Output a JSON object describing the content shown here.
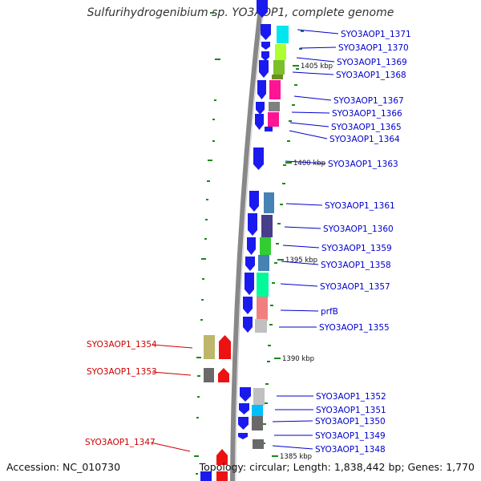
{
  "title": "Sulfurihydrogenibium sp. YO3AOP1, complete genome",
  "footer": {
    "accession": "Accession: NC_010730",
    "topology": "Topology: circular; Length: 1,838,442 bp; Genes: 1,770"
  },
  "colors": {
    "forward_arrow": "#1a1aee",
    "reverse_arrow": "#ee1111",
    "forward_label": "#0000cc",
    "reverse_label": "#cc0000",
    "backbone": "#888888",
    "tick": "#1a8a1a"
  },
  "scale_ticks": [
    {
      "label": "1405 kbp"
    },
    {
      "label": "1400 kbp"
    },
    {
      "label": "1395 kbp"
    },
    {
      "label": "1390 kbp"
    },
    {
      "label": "1385 kbp"
    }
  ],
  "genes_forward": [
    {
      "label": "SYO3AOP1_1371",
      "color": "#00e5ee"
    },
    {
      "label": "SYO3AOP1_1370",
      "color": "#adff2f"
    },
    {
      "label": "SYO3AOP1_1369",
      "color": "#7cbf2a"
    },
    {
      "label": "SYO3AOP1_1368",
      "color": "#6b8e23"
    },
    {
      "label": "SYO3AOP1_1367",
      "color": "#ff1493"
    },
    {
      "label": "SYO3AOP1_1366",
      "color": "#808080"
    },
    {
      "label": "SYO3AOP1_1365",
      "color": "#ff1493"
    },
    {
      "label": "SYO3AOP1_1364",
      "color": "#1a1aee"
    },
    {
      "label": "SYO3AOP1_1363",
      "color": "#1a1aee"
    },
    {
      "label": "SYO3AOP1_1361",
      "color": "#4682b4"
    },
    {
      "label": "SYO3AOP1_1360",
      "color": "#483d8b"
    },
    {
      "label": "SYO3AOP1_1359",
      "color": "#32cd32"
    },
    {
      "label": "SYO3AOP1_1358",
      "color": "#4682b4"
    },
    {
      "label": "SYO3AOP1_1357",
      "color": "#00fa9a"
    },
    {
      "label": "prfB",
      "color": "#f08080"
    },
    {
      "label": "SYO3AOP1_1355",
      "color": "#c0c0c0"
    },
    {
      "label": "SYO3AOP1_1352",
      "color": "#c0c0c0"
    },
    {
      "label": "SYO3AOP1_1351",
      "color": "#00bfff"
    },
    {
      "label": "SYO3AOP1_1350",
      "color": "#696969"
    },
    {
      "label": "SYO3AOP1_1349",
      "color": "#1a1aee"
    },
    {
      "label": "SYO3AOP1_1348",
      "color": "#696969"
    }
  ],
  "genes_reverse": [
    {
      "label": "SYO3AOP1_1354",
      "color": "#bdb76b"
    },
    {
      "label": "SYO3AOP1_1353",
      "color": "#696969"
    },
    {
      "label": "SYO3AOP1_1347",
      "color": "#ee1111"
    }
  ]
}
